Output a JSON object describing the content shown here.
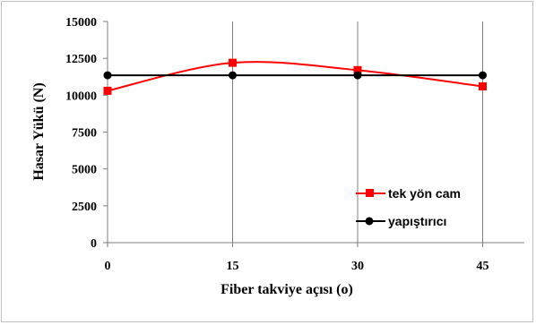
{
  "chart_data": {
    "type": "line",
    "x": [
      0,
      15,
      30,
      45
    ],
    "xlabel": "Fiber takviye açısı (o)",
    "ylabel": "Hasar Yükü (N)",
    "xlim": [
      0,
      50
    ],
    "ylim": [
      0,
      15000
    ],
    "xticks": [
      "0",
      "15",
      "30",
      "45"
    ],
    "yticks": [
      "0",
      "2500",
      "5000",
      "7500",
      "10000",
      "12500",
      "15000"
    ],
    "grid": "vertical",
    "legend_position": "bottom-right",
    "series": [
      {
        "name": "tek yön cam",
        "values": [
          10300,
          12200,
          11700,
          10600
        ],
        "color": "#ff0000",
        "marker": "square",
        "smooth": true
      },
      {
        "name": "yapıştırıcı",
        "values": [
          11350,
          11350,
          11350,
          11350
        ],
        "color": "#000000",
        "marker": "circle",
        "smooth": false
      }
    ]
  }
}
